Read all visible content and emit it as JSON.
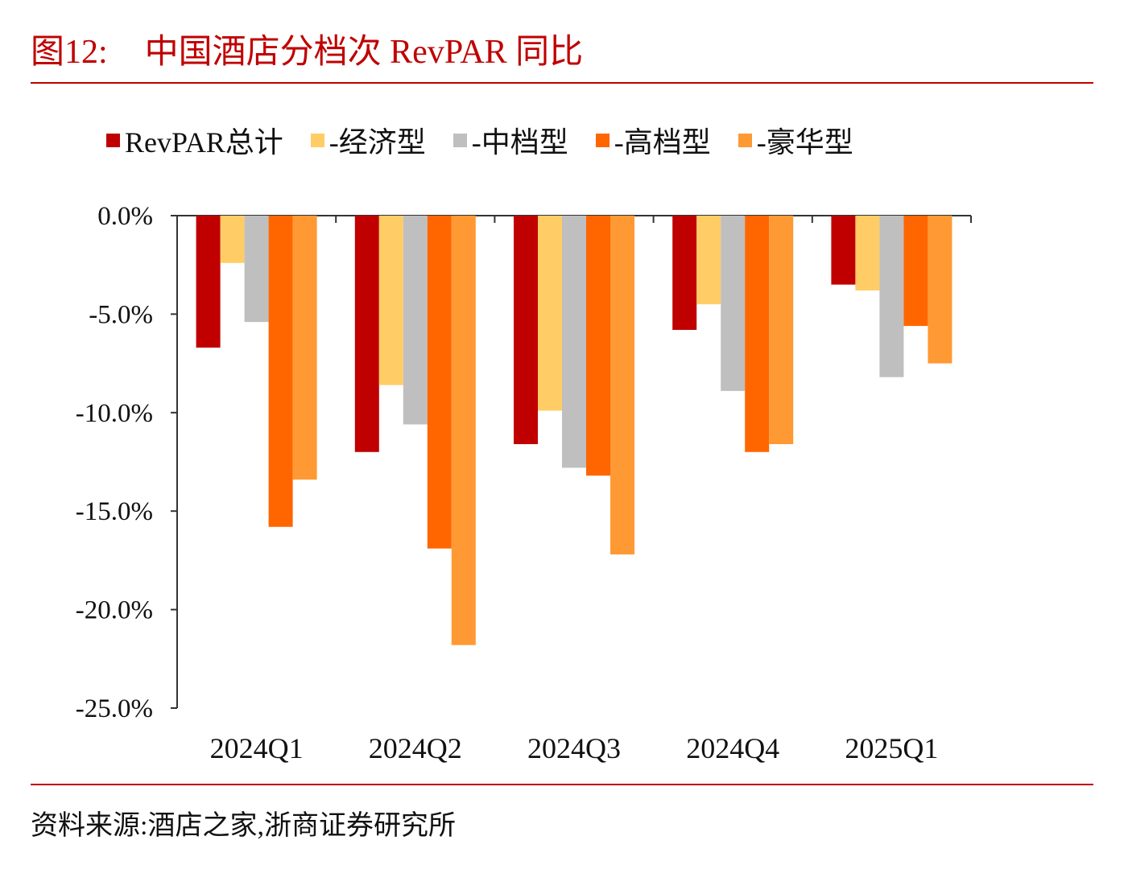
{
  "figure": {
    "label": "图12:",
    "title": "中国酒店分档次 RevPAR 同比"
  },
  "source_note": "资料来源:酒店之家,浙商证券研究所",
  "chart_data": {
    "type": "bar",
    "categories": [
      "2024Q1",
      "2024Q2",
      "2024Q3",
      "2024Q4",
      "2025Q1"
    ],
    "series": [
      {
        "name": "RevPAR总计",
        "color": "#c00000",
        "values": [
          -6.7,
          -12.0,
          -11.6,
          -5.8,
          -3.5
        ]
      },
      {
        "name": "-经济型",
        "color": "#ffcc66",
        "values": [
          -2.4,
          -8.6,
          -9.9,
          -4.5,
          -3.8
        ]
      },
      {
        "name": "-中档型",
        "color": "#bfbfbf",
        "values": [
          -5.4,
          -10.6,
          -12.8,
          -8.9,
          -8.2
        ]
      },
      {
        "name": "-高档型",
        "color": "#ff6600",
        "values": [
          -15.8,
          -16.9,
          -13.2,
          -12.0,
          -5.6
        ]
      },
      {
        "name": "-豪华型",
        "color": "#ff9933",
        "values": [
          -13.4,
          -21.8,
          -17.2,
          -11.6,
          -7.5
        ]
      }
    ],
    "yticks": [
      "0.0%",
      "-5.0%",
      "-10.0%",
      "-15.0%",
      "-20.0%",
      "-25.0%"
    ],
    "ylim": [
      -25,
      0
    ],
    "grid": false,
    "legend": "top"
  }
}
